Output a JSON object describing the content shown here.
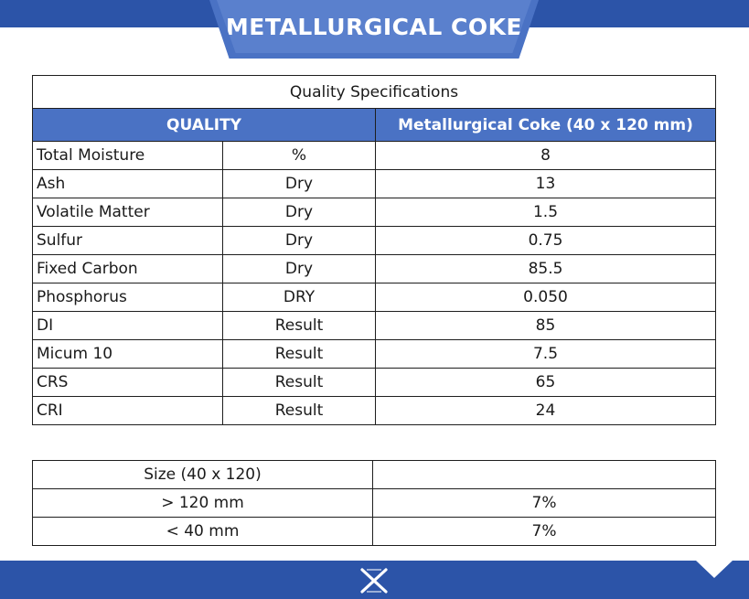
{
  "header": {
    "title": "METALLURGICAL COKE"
  },
  "specifications": {
    "caption": "Quality Specifications",
    "header_quality": "QUALITY",
    "header_product": "Metallurgical Coke (40 x 120 mm)",
    "rows": [
      {
        "name": "Total Moisture",
        "basis": "%",
        "value": "8"
      },
      {
        "name": "Ash",
        "basis": "Dry",
        "value": "13"
      },
      {
        "name": "Volatile Matter",
        "basis": "Dry",
        "value": "1.5"
      },
      {
        "name": "Sulfur",
        "basis": "Dry",
        "value": "0.75"
      },
      {
        "name": "Fixed Carbon",
        "basis": "Dry",
        "value": "85.5"
      },
      {
        "name": "Phosphorus",
        "basis": "DRY",
        "value": "0.050"
      },
      {
        "name": "DI",
        "basis": "Result",
        "value": "85"
      },
      {
        "name": "Micum 10",
        "basis": "Result",
        "value": "7.5"
      },
      {
        "name": "CRS",
        "basis": "Result",
        "value": "65"
      },
      {
        "name": "CRI",
        "basis": "Result",
        "value": "24"
      }
    ]
  },
  "size": {
    "header_label": "Size (40 x 120)",
    "header_value": "",
    "rows": [
      {
        "label": "> 120 mm",
        "value": "7%"
      },
      {
        "label": "< 40 mm",
        "value": "7%"
      }
    ]
  },
  "footer": {
    "logo_icon": "x-logo-icon"
  },
  "colors": {
    "brand_blue": "#2c54a8",
    "header_blue": "#4a72c4"
  }
}
